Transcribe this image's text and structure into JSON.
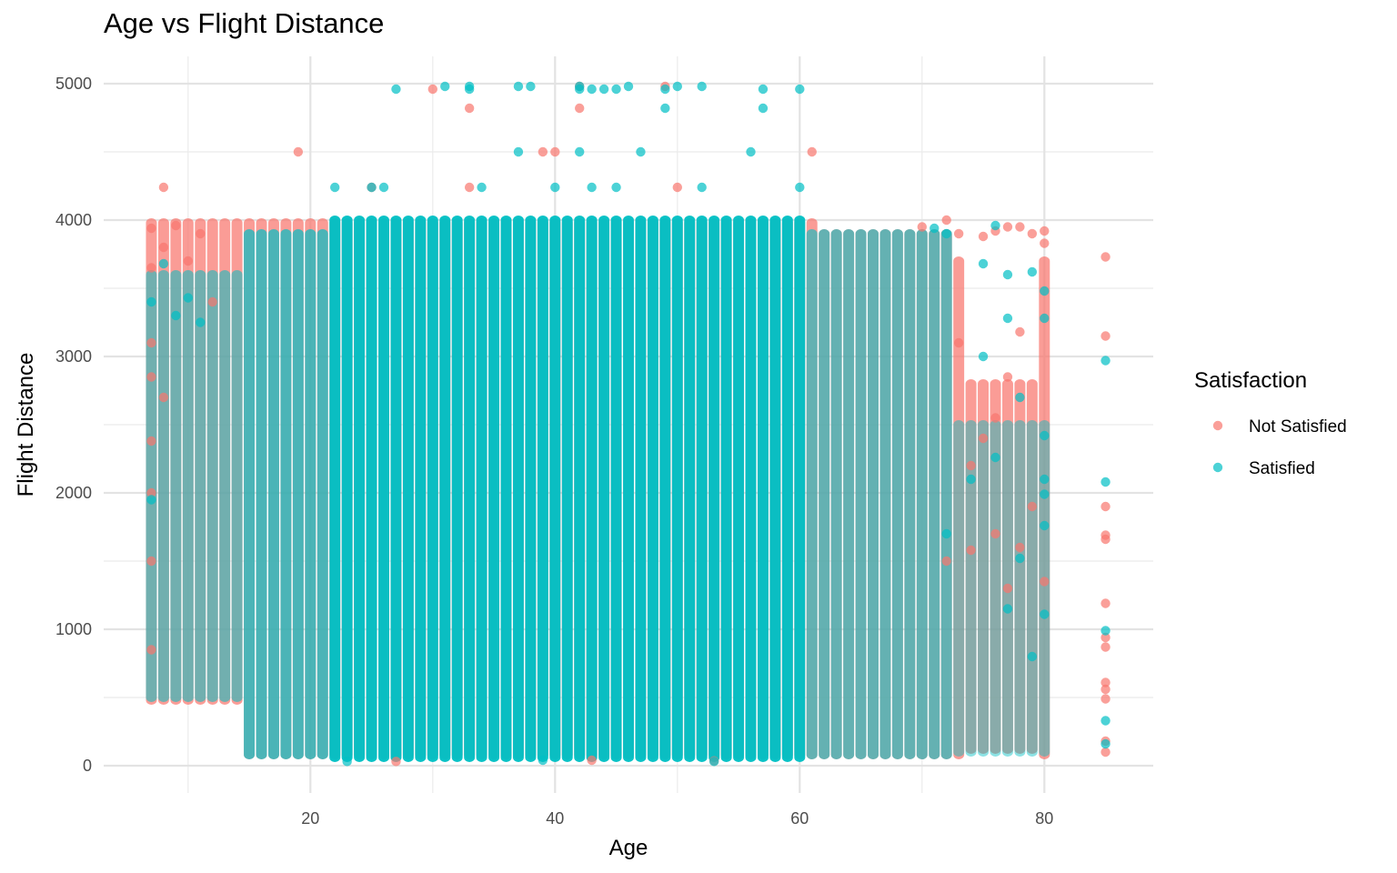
{
  "chart_data": {
    "type": "scatter",
    "title": "Age vs Flight Distance",
    "xlabel": "Age",
    "ylabel": "Flight Distance",
    "xlim": [
      3.1,
      88.9
    ],
    "ylim": [
      -200,
      5200
    ],
    "x_ticks": [
      20,
      40,
      60,
      80
    ],
    "y_ticks": [
      0,
      1000,
      2000,
      3000,
      4000,
      5000
    ],
    "grid": true,
    "legend": {
      "title": "Satisfaction",
      "placement": "right"
    },
    "series": [
      {
        "name": "Not Satisfied",
        "color": "#F8766D",
        "band_x_range": [
          7,
          80
        ],
        "band_y_range": [
          31,
          4000
        ],
        "points": [
          {
            "x": 8,
            "y": 4240
          },
          {
            "x": 19,
            "y": 4500
          },
          {
            "x": 25,
            "y": 4240
          },
          {
            "x": 30,
            "y": 4960
          },
          {
            "x": 33,
            "y": 4820
          },
          {
            "x": 33,
            "y": 4240
          },
          {
            "x": 39,
            "y": 4500
          },
          {
            "x": 40,
            "y": 4500
          },
          {
            "x": 42,
            "y": 4980
          },
          {
            "x": 42,
            "y": 4820
          },
          {
            "x": 49,
            "y": 4980
          },
          {
            "x": 50,
            "y": 4240
          },
          {
            "x": 61,
            "y": 4500
          },
          {
            "x": 7,
            "y": 3940
          },
          {
            "x": 7,
            "y": 3650
          },
          {
            "x": 7,
            "y": 3100
          },
          {
            "x": 7,
            "y": 2850
          },
          {
            "x": 7,
            "y": 2380
          },
          {
            "x": 7,
            "y": 2000
          },
          {
            "x": 7,
            "y": 1500
          },
          {
            "x": 7,
            "y": 850
          },
          {
            "x": 8,
            "y": 3800
          },
          {
            "x": 8,
            "y": 2700
          },
          {
            "x": 9,
            "y": 3960
          },
          {
            "x": 10,
            "y": 3700
          },
          {
            "x": 11,
            "y": 3900
          },
          {
            "x": 12,
            "y": 3400
          },
          {
            "x": 70,
            "y": 3950
          },
          {
            "x": 72,
            "y": 4000
          },
          {
            "x": 73,
            "y": 3900
          },
          {
            "x": 75,
            "y": 3880
          },
          {
            "x": 76,
            "y": 3920
          },
          {
            "x": 77,
            "y": 3950
          },
          {
            "x": 78,
            "y": 3950
          },
          {
            "x": 79,
            "y": 3900
          },
          {
            "x": 80,
            "y": 3920
          },
          {
            "x": 80,
            "y": 3830
          },
          {
            "x": 78,
            "y": 3180
          },
          {
            "x": 77,
            "y": 2850
          },
          {
            "x": 76,
            "y": 2550
          },
          {
            "x": 75,
            "y": 2400
          },
          {
            "x": 74,
            "y": 2200
          },
          {
            "x": 73,
            "y": 3100
          },
          {
            "x": 78,
            "y": 1600
          },
          {
            "x": 79,
            "y": 1900
          },
          {
            "x": 80,
            "y": 1350
          },
          {
            "x": 85,
            "y": 3730
          },
          {
            "x": 85,
            "y": 3150
          },
          {
            "x": 85,
            "y": 1900
          },
          {
            "x": 85,
            "y": 1690
          },
          {
            "x": 85,
            "y": 1660
          },
          {
            "x": 85,
            "y": 1190
          },
          {
            "x": 85,
            "y": 940
          },
          {
            "x": 85,
            "y": 870
          },
          {
            "x": 85,
            "y": 610
          },
          {
            "x": 85,
            "y": 560
          },
          {
            "x": 85,
            "y": 490
          },
          {
            "x": 85,
            "y": 180
          },
          {
            "x": 85,
            "y": 100
          },
          {
            "x": 27,
            "y": 31
          },
          {
            "x": 43,
            "y": 40
          },
          {
            "x": 53,
            "y": 35
          },
          {
            "x": 72,
            "y": 1500
          },
          {
            "x": 74,
            "y": 1580
          },
          {
            "x": 76,
            "y": 1700
          },
          {
            "x": 77,
            "y": 1300
          }
        ]
      },
      {
        "name": "Satisfied",
        "color": "#00BFC4",
        "band_x_range": [
          22,
          60
        ],
        "band_y_range": [
          31,
          4000
        ],
        "points": [
          {
            "x": 22,
            "y": 4240
          },
          {
            "x": 25,
            "y": 4240
          },
          {
            "x": 26,
            "y": 4240
          },
          {
            "x": 27,
            "y": 4960
          },
          {
            "x": 31,
            "y": 4980
          },
          {
            "x": 33,
            "y": 4980
          },
          {
            "x": 33,
            "y": 4960
          },
          {
            "x": 34,
            "y": 4240
          },
          {
            "x": 37,
            "y": 4980
          },
          {
            "x": 37,
            "y": 4500
          },
          {
            "x": 38,
            "y": 4980
          },
          {
            "x": 40,
            "y": 4240
          },
          {
            "x": 42,
            "y": 4980
          },
          {
            "x": 42,
            "y": 4960
          },
          {
            "x": 42,
            "y": 4500
          },
          {
            "x": 43,
            "y": 4960
          },
          {
            "x": 43,
            "y": 4240
          },
          {
            "x": 44,
            "y": 4960
          },
          {
            "x": 45,
            "y": 4960
          },
          {
            "x": 45,
            "y": 4240
          },
          {
            "x": 46,
            "y": 4980
          },
          {
            "x": 47,
            "y": 4500
          },
          {
            "x": 49,
            "y": 4960
          },
          {
            "x": 49,
            "y": 4820
          },
          {
            "x": 50,
            "y": 4980
          },
          {
            "x": 52,
            "y": 4980
          },
          {
            "x": 52,
            "y": 4240
          },
          {
            "x": 56,
            "y": 4500
          },
          {
            "x": 57,
            "y": 4960
          },
          {
            "x": 57,
            "y": 4820
          },
          {
            "x": 60,
            "y": 4960
          },
          {
            "x": 60,
            "y": 4240
          },
          {
            "x": 7,
            "y": 3400
          },
          {
            "x": 7,
            "y": 1950
          },
          {
            "x": 8,
            "y": 3680
          },
          {
            "x": 9,
            "y": 3300
          },
          {
            "x": 10,
            "y": 3430
          },
          {
            "x": 11,
            "y": 3250
          },
          {
            "x": 71,
            "y": 3940
          },
          {
            "x": 72,
            "y": 3900
          },
          {
            "x": 76,
            "y": 3960
          },
          {
            "x": 75,
            "y": 3680
          },
          {
            "x": 77,
            "y": 3600
          },
          {
            "x": 79,
            "y": 3620
          },
          {
            "x": 80,
            "y": 3480
          },
          {
            "x": 80,
            "y": 3280
          },
          {
            "x": 77,
            "y": 3280
          },
          {
            "x": 75,
            "y": 3000
          },
          {
            "x": 78,
            "y": 2700
          },
          {
            "x": 80,
            "y": 2420
          },
          {
            "x": 76,
            "y": 2260
          },
          {
            "x": 80,
            "y": 2100
          },
          {
            "x": 80,
            "y": 1990
          },
          {
            "x": 80,
            "y": 1760
          },
          {
            "x": 78,
            "y": 1520
          },
          {
            "x": 77,
            "y": 1150
          },
          {
            "x": 80,
            "y": 1110
          },
          {
            "x": 85,
            "y": 2970
          },
          {
            "x": 85,
            "y": 2080
          },
          {
            "x": 85,
            "y": 990
          },
          {
            "x": 85,
            "y": 330
          },
          {
            "x": 85,
            "y": 160
          },
          {
            "x": 23,
            "y": 31
          },
          {
            "x": 39,
            "y": 40
          },
          {
            "x": 53,
            "y": 31
          },
          {
            "x": 72,
            "y": 1700
          },
          {
            "x": 74,
            "y": 2100
          },
          {
            "x": 79,
            "y": 800
          }
        ]
      }
    ]
  }
}
